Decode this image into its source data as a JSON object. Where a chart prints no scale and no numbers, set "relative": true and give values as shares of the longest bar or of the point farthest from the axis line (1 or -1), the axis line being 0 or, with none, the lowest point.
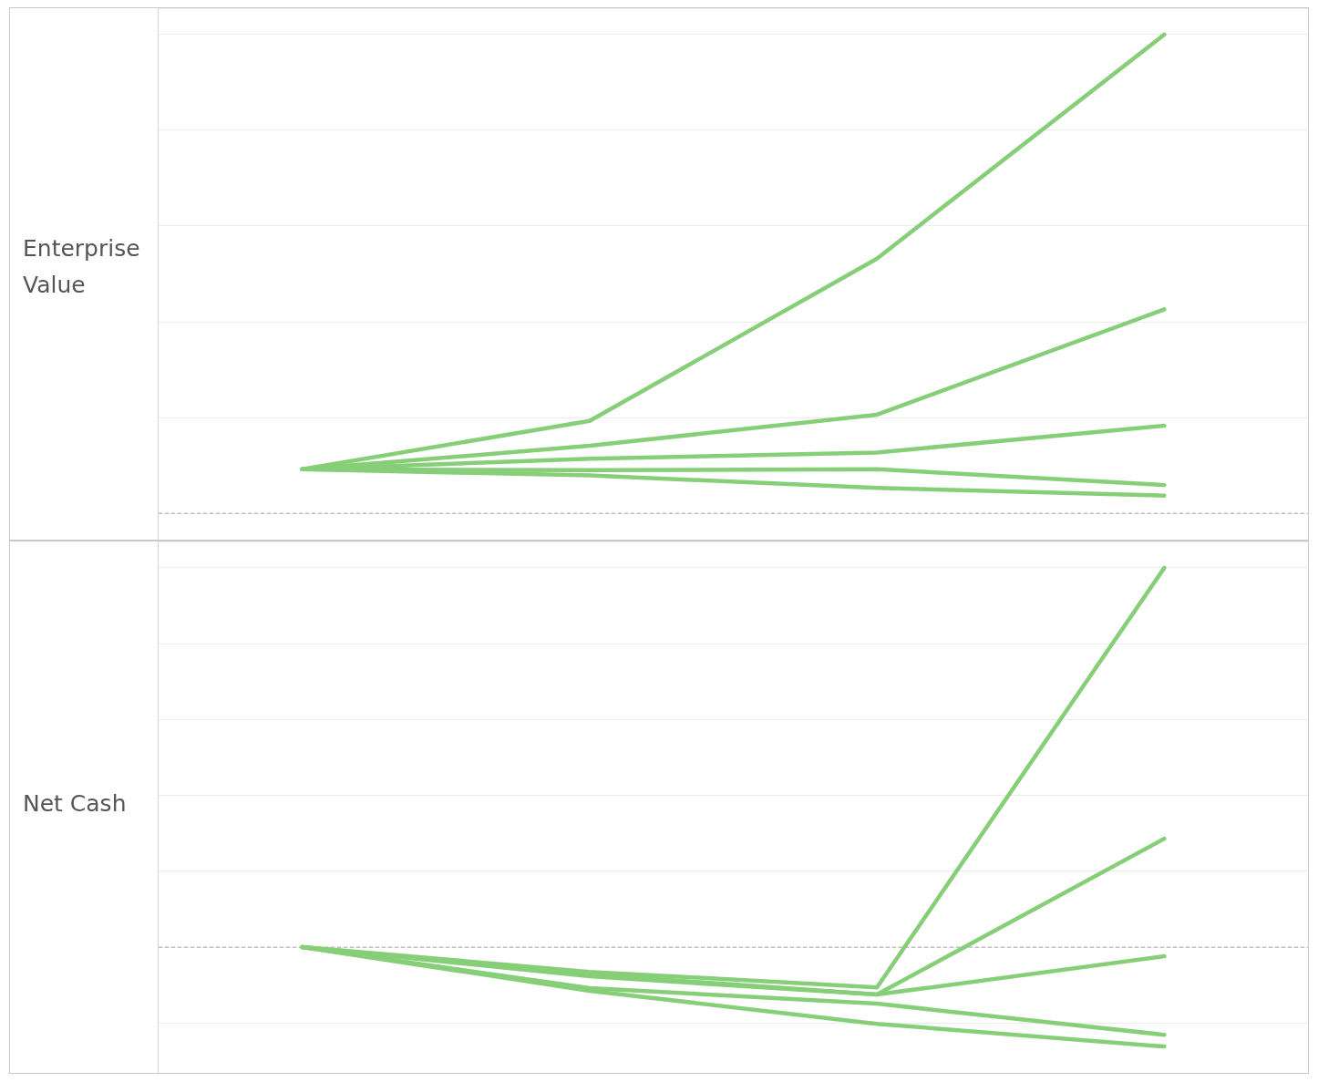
{
  "chart_data": [
    {
      "type": "line",
      "ylabel": "Enterprise Value",
      "relative": true,
      "categories": [
        null,
        null,
        null,
        null
      ],
      "series": [
        {
          "color": "#86cf78",
          "values": [
            0.092,
            0.193,
            0.532,
            1.0
          ]
        },
        {
          "color": "#86cf78",
          "values": [
            0.092,
            0.141,
            0.206,
            0.426
          ]
        },
        {
          "color": "#86cf78",
          "values": [
            0.092,
            0.114,
            0.127,
            0.183
          ]
        },
        {
          "color": "#86cf78",
          "values": [
            0.092,
            0.09,
            0.092,
            0.059
          ]
        },
        {
          "color": "#86cf78",
          "values": [
            0.092,
            0.079,
            0.053,
            0.037
          ]
        }
      ],
      "ref_lines": [
        {
          "axis": "y",
          "value": 0,
          "color": "#b4b4b4",
          "line_style": "dashed"
        }
      ],
      "grid": "y",
      "legend": false,
      "marker": "none"
    },
    {
      "type": "line",
      "ylabel": "Net Cash",
      "relative": true,
      "categories": [
        null,
        null,
        null,
        null
      ],
      "series": [
        {
          "color": "#86cf78",
          "values": [
            0,
            -0.065,
            -0.106,
            1.0
          ]
        },
        {
          "color": "#86cf78",
          "values": [
            0,
            -0.072,
            -0.125,
            0.286
          ]
        },
        {
          "color": "#86cf78",
          "values": [
            0,
            -0.077,
            -0.125,
            -0.024
          ]
        },
        {
          "color": "#86cf78",
          "values": [
            0,
            -0.108,
            -0.149,
            -0.231
          ]
        },
        {
          "color": "#86cf78",
          "values": [
            0,
            -0.115,
            -0.202,
            -0.262
          ]
        }
      ],
      "ref_lines": [
        {
          "axis": "y",
          "value": 0,
          "color": "#b4b4b4",
          "line_style": "dashed"
        }
      ],
      "grid": "y",
      "legend": false,
      "marker": "none"
    }
  ]
}
